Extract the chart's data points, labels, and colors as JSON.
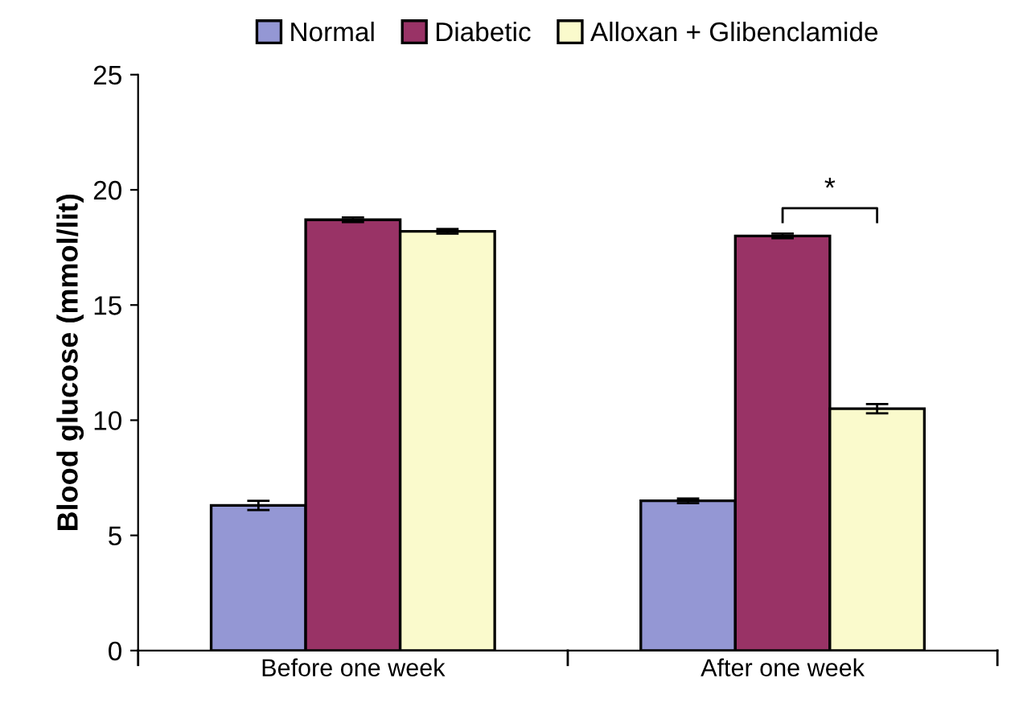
{
  "chart_data": {
    "type": "bar",
    "ylabel": "Blood glucose (mmol/lit)",
    "categories": [
      "Before one week",
      "After one week"
    ],
    "series": [
      {
        "name": "Normal",
        "color": "#9497d4",
        "values": [
          6.3,
          6.5
        ],
        "errors": [
          0.2,
          0.1
        ]
      },
      {
        "name": "Diabetic",
        "color": "#993366",
        "values": [
          18.7,
          18.0
        ],
        "errors": [
          0.1,
          0.1
        ]
      },
      {
        "name": "Alloxan + Glibenclamide",
        "color": "#fafacc",
        "values": [
          18.2,
          10.5
        ],
        "errors": [
          0.1,
          0.2
        ]
      }
    ],
    "ylim": [
      0,
      25
    ],
    "yticks": [
      0,
      5,
      10,
      15,
      20,
      25
    ],
    "grid": false,
    "legend": "top",
    "annotations": [
      "*"
    ]
  }
}
